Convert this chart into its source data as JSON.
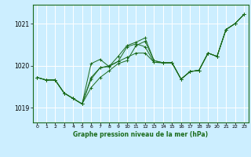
{
  "xlabel": "Graphe pression niveau de la mer (hPa)",
  "xlim": [
    -0.5,
    23.5
  ],
  "ylim": [
    1018.65,
    1021.45
  ],
  "yticks": [
    1019,
    1020,
    1021
  ],
  "xticks": [
    0,
    1,
    2,
    3,
    4,
    5,
    6,
    7,
    8,
    9,
    10,
    11,
    12,
    13,
    14,
    15,
    16,
    17,
    18,
    19,
    20,
    21,
    22,
    23
  ],
  "bg_color": "#cceeff",
  "grid_color": "#ffffff",
  "line_color": "#1a6b1a",
  "series": [
    [
      1019.72,
      1019.66,
      1019.66,
      1019.35,
      1019.22,
      1019.09,
      1020.05,
      1020.15,
      1019.98,
      1020.22,
      1020.48,
      1020.56,
      1020.66,
      1020.12,
      1020.07,
      1020.07,
      1019.68,
      1019.86,
      1019.89,
      1020.3,
      1020.22,
      1020.86,
      1021.0,
      1021.22
    ],
    [
      1019.72,
      1019.66,
      1019.66,
      1019.35,
      1019.22,
      1019.09,
      1019.72,
      1019.95,
      1020.0,
      1020.1,
      1020.2,
      1020.3,
      1020.3,
      1020.08,
      1020.07,
      1020.07,
      1019.68,
      1019.86,
      1019.89,
      1020.3,
      1020.22,
      1020.86,
      1021.0,
      1021.22
    ],
    [
      1019.72,
      1019.66,
      1019.66,
      1019.35,
      1019.22,
      1019.09,
      1019.48,
      1019.72,
      1019.88,
      1020.05,
      1020.12,
      1020.48,
      1020.58,
      1020.12,
      1020.07,
      1020.07,
      1019.68,
      1019.86,
      1019.89,
      1020.3,
      1020.22,
      1020.86,
      1021.0,
      1021.22
    ],
    [
      1019.72,
      1019.66,
      1019.66,
      1019.35,
      1019.22,
      1019.09,
      1019.68,
      1019.95,
      1019.98,
      1020.1,
      1020.45,
      1020.52,
      1020.45,
      1020.08,
      1020.07,
      1020.07,
      1019.68,
      1019.86,
      1019.89,
      1020.3,
      1020.22,
      1020.86,
      1021.0,
      1021.22
    ]
  ]
}
